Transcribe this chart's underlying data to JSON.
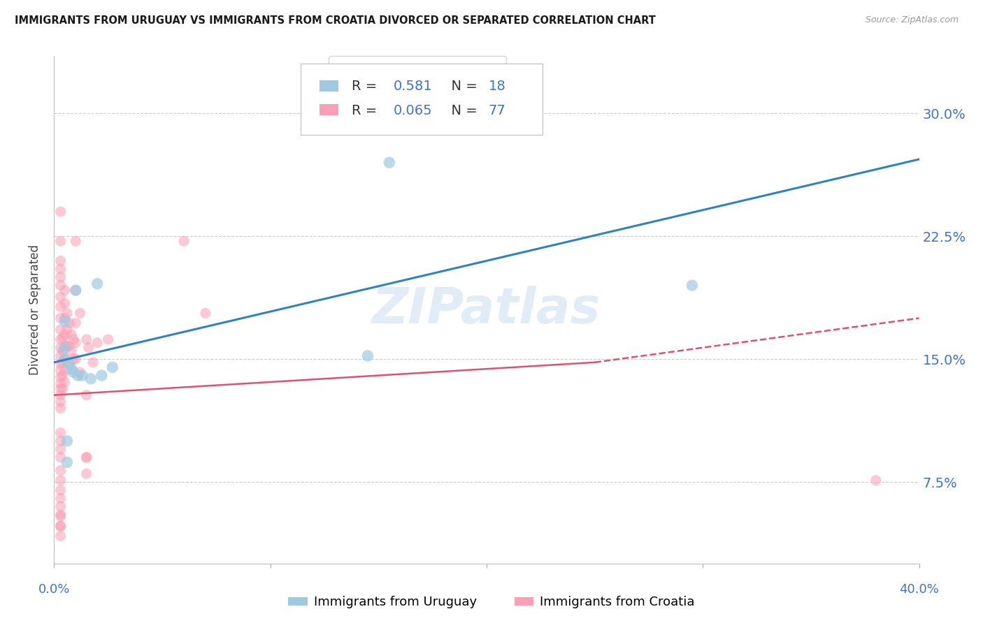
{
  "title": "IMMIGRANTS FROM URUGUAY VS IMMIGRANTS FROM CROATIA DIVORCED OR SEPARATED CORRELATION CHART",
  "source": "Source: ZipAtlas.com",
  "ylabel": "Divorced or Separated",
  "y_tick_labels": [
    "7.5%",
    "15.0%",
    "22.5%",
    "30.0%"
  ],
  "y_tick_values": [
    0.075,
    0.15,
    0.225,
    0.3
  ],
  "xlim": [
    0.0,
    0.4
  ],
  "ylim": [
    0.025,
    0.335
  ],
  "uruguay_color": "#9ecae1",
  "croatia_color": "#fa9fb5",
  "trend_uruguay_color": "#3182bd",
  "trend_croatia_solid_color": "#e05070",
  "trend_croatia_dashed_color": "#e05070",
  "uruguay_label": "Immigrants from Uruguay",
  "croatia_label": "Immigrants from Croatia",
  "legend_R1": "0.581",
  "legend_N1": "18",
  "legend_R2": "0.065",
  "legend_N2": "77",
  "trend_ury_x0": 0.0,
  "trend_ury_y0": 0.148,
  "trend_ury_x1": 0.4,
  "trend_ury_y1": 0.272,
  "trend_cro_solid_x0": 0.0,
  "trend_cro_solid_y0": 0.128,
  "trend_cro_solid_x1": 0.25,
  "trend_cro_solid_y1": 0.148,
  "trend_cro_dashed_x0": 0.25,
  "trend_cro_dashed_y0": 0.148,
  "trend_cro_dashed_x1": 0.4,
  "trend_cro_dashed_y1": 0.175,
  "uruguay_points_x": [
    0.02,
    0.01,
    0.005,
    0.005,
    0.005,
    0.007,
    0.008,
    0.009,
    0.011,
    0.013,
    0.017,
    0.022,
    0.027,
    0.145,
    0.295,
    0.155,
    0.006,
    0.006
  ],
  "uruguay_points_y": [
    0.196,
    0.192,
    0.173,
    0.157,
    0.15,
    0.147,
    0.144,
    0.142,
    0.14,
    0.14,
    0.138,
    0.14,
    0.145,
    0.152,
    0.195,
    0.27,
    0.1,
    0.087
  ],
  "croatia_points_x": [
    0.003,
    0.003,
    0.003,
    0.003,
    0.003,
    0.003,
    0.003,
    0.003,
    0.003,
    0.003,
    0.003,
    0.003,
    0.003,
    0.003,
    0.003,
    0.003,
    0.003,
    0.003,
    0.003,
    0.003,
    0.003,
    0.004,
    0.004,
    0.004,
    0.004,
    0.004,
    0.005,
    0.005,
    0.005,
    0.005,
    0.005,
    0.005,
    0.005,
    0.005,
    0.006,
    0.006,
    0.006,
    0.007,
    0.007,
    0.007,
    0.008,
    0.008,
    0.009,
    0.009,
    0.01,
    0.01,
    0.01,
    0.01,
    0.01,
    0.012,
    0.012,
    0.015,
    0.015,
    0.015,
    0.016,
    0.018,
    0.02,
    0.025,
    0.06,
    0.07,
    0.015,
    0.015,
    0.003,
    0.003,
    0.003,
    0.003,
    0.003,
    0.003,
    0.003,
    0.003,
    0.003,
    0.003,
    0.003,
    0.38,
    0.003,
    0.003,
    0.003
  ],
  "croatia_points_y": [
    0.24,
    0.222,
    0.21,
    0.205,
    0.2,
    0.195,
    0.188,
    0.182,
    0.175,
    0.168,
    0.162,
    0.157,
    0.152,
    0.147,
    0.143,
    0.139,
    0.135,
    0.132,
    0.128,
    0.124,
    0.12,
    0.163,
    0.155,
    0.148,
    0.14,
    0.132,
    0.192,
    0.184,
    0.175,
    0.165,
    0.158,
    0.15,
    0.143,
    0.136,
    0.178,
    0.168,
    0.158,
    0.172,
    0.158,
    0.148,
    0.165,
    0.155,
    0.162,
    0.15,
    0.222,
    0.192,
    0.172,
    0.16,
    0.15,
    0.178,
    0.142,
    0.162,
    0.128,
    0.09,
    0.157,
    0.148,
    0.16,
    0.162,
    0.222,
    0.178,
    0.09,
    0.08,
    0.105,
    0.1,
    0.095,
    0.09,
    0.082,
    0.076,
    0.07,
    0.065,
    0.06,
    0.054,
    0.048,
    0.076,
    0.055,
    0.048,
    0.042
  ],
  "grid_color": "#cccccc",
  "background_color": "#ffffff",
  "tick_label_color": "#4472c4"
}
